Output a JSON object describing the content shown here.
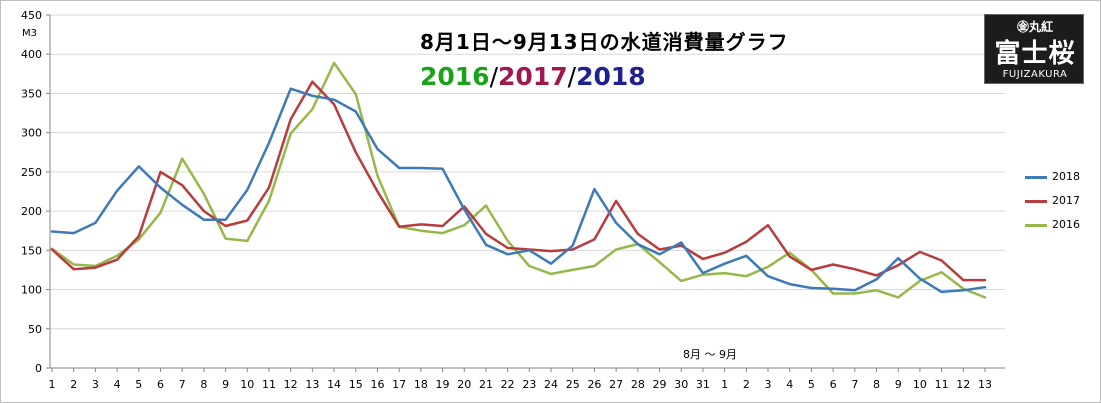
{
  "title": "8月1日～9月13日の水道消費量グラフ",
  "years_label": {
    "y2016": "2016",
    "y2017": "2017",
    "y2018": "2018",
    "separator": "/",
    "color_2016": "#1aa31a",
    "color_2017": "#a01850",
    "color_2018": "#202090"
  },
  "logo": {
    "top": "㊎丸紅",
    "main": "富士桜",
    "bottom": "FUJIZAKURA"
  },
  "chart_data": {
    "type": "line",
    "ylabel": "M3",
    "ylim": [
      0,
      450
    ],
    "yticks": [
      0,
      50,
      100,
      150,
      200,
      250,
      300,
      350,
      400,
      450
    ],
    "grid": true,
    "legend_position": "right",
    "period_label": "8月 ～ 9月",
    "categories": [
      "1",
      "2",
      "3",
      "4",
      "5",
      "6",
      "7",
      "8",
      "9",
      "10",
      "11",
      "12",
      "13",
      "14",
      "15",
      "16",
      "17",
      "18",
      "19",
      "20",
      "21",
      "22",
      "23",
      "24",
      "25",
      "26",
      "27",
      "28",
      "29",
      "30",
      "31",
      "1",
      "2",
      "3",
      "4",
      "5",
      "6",
      "7",
      "8",
      "9",
      "10",
      "11",
      "12",
      "13"
    ],
    "series": [
      {
        "name": "2018",
        "color": "#3e79b8",
        "values": [
          174,
          172,
          185,
          226,
          257,
          230,
          208,
          189,
          189,
          227,
          287,
          356,
          347,
          342,
          327,
          279,
          255,
          255,
          254,
          202,
          157,
          145,
          150,
          133,
          156,
          228,
          185,
          158,
          145,
          160,
          121,
          133,
          143,
          117,
          107,
          102,
          101,
          99,
          113,
          140,
          114,
          97,
          99,
          103
        ]
      },
      {
        "name": "2017",
        "color": "#b83c3c",
        "values": [
          151,
          126,
          128,
          138,
          168,
          250,
          233,
          200,
          181,
          188,
          230,
          317,
          365,
          336,
          275,
          225,
          180,
          183,
          181,
          206,
          171,
          153,
          151,
          149,
          151,
          164,
          213,
          171,
          151,
          156,
          139,
          147,
          161,
          182,
          142,
          125,
          132,
          126,
          118,
          131,
          148,
          137,
          112,
          112
        ]
      },
      {
        "name": "2016",
        "color": "#96b84a",
        "values": [
          152,
          132,
          130,
          143,
          164,
          198,
          267,
          222,
          165,
          162,
          213,
          299,
          330,
          389,
          349,
          245,
          180,
          175,
          172,
          182,
          207,
          162,
          130,
          120,
          125,
          130,
          151,
          158,
          135,
          111,
          119,
          121,
          117,
          129,
          147,
          125,
          95,
          95,
          99,
          90,
          111,
          122,
          101,
          90
        ]
      }
    ]
  }
}
